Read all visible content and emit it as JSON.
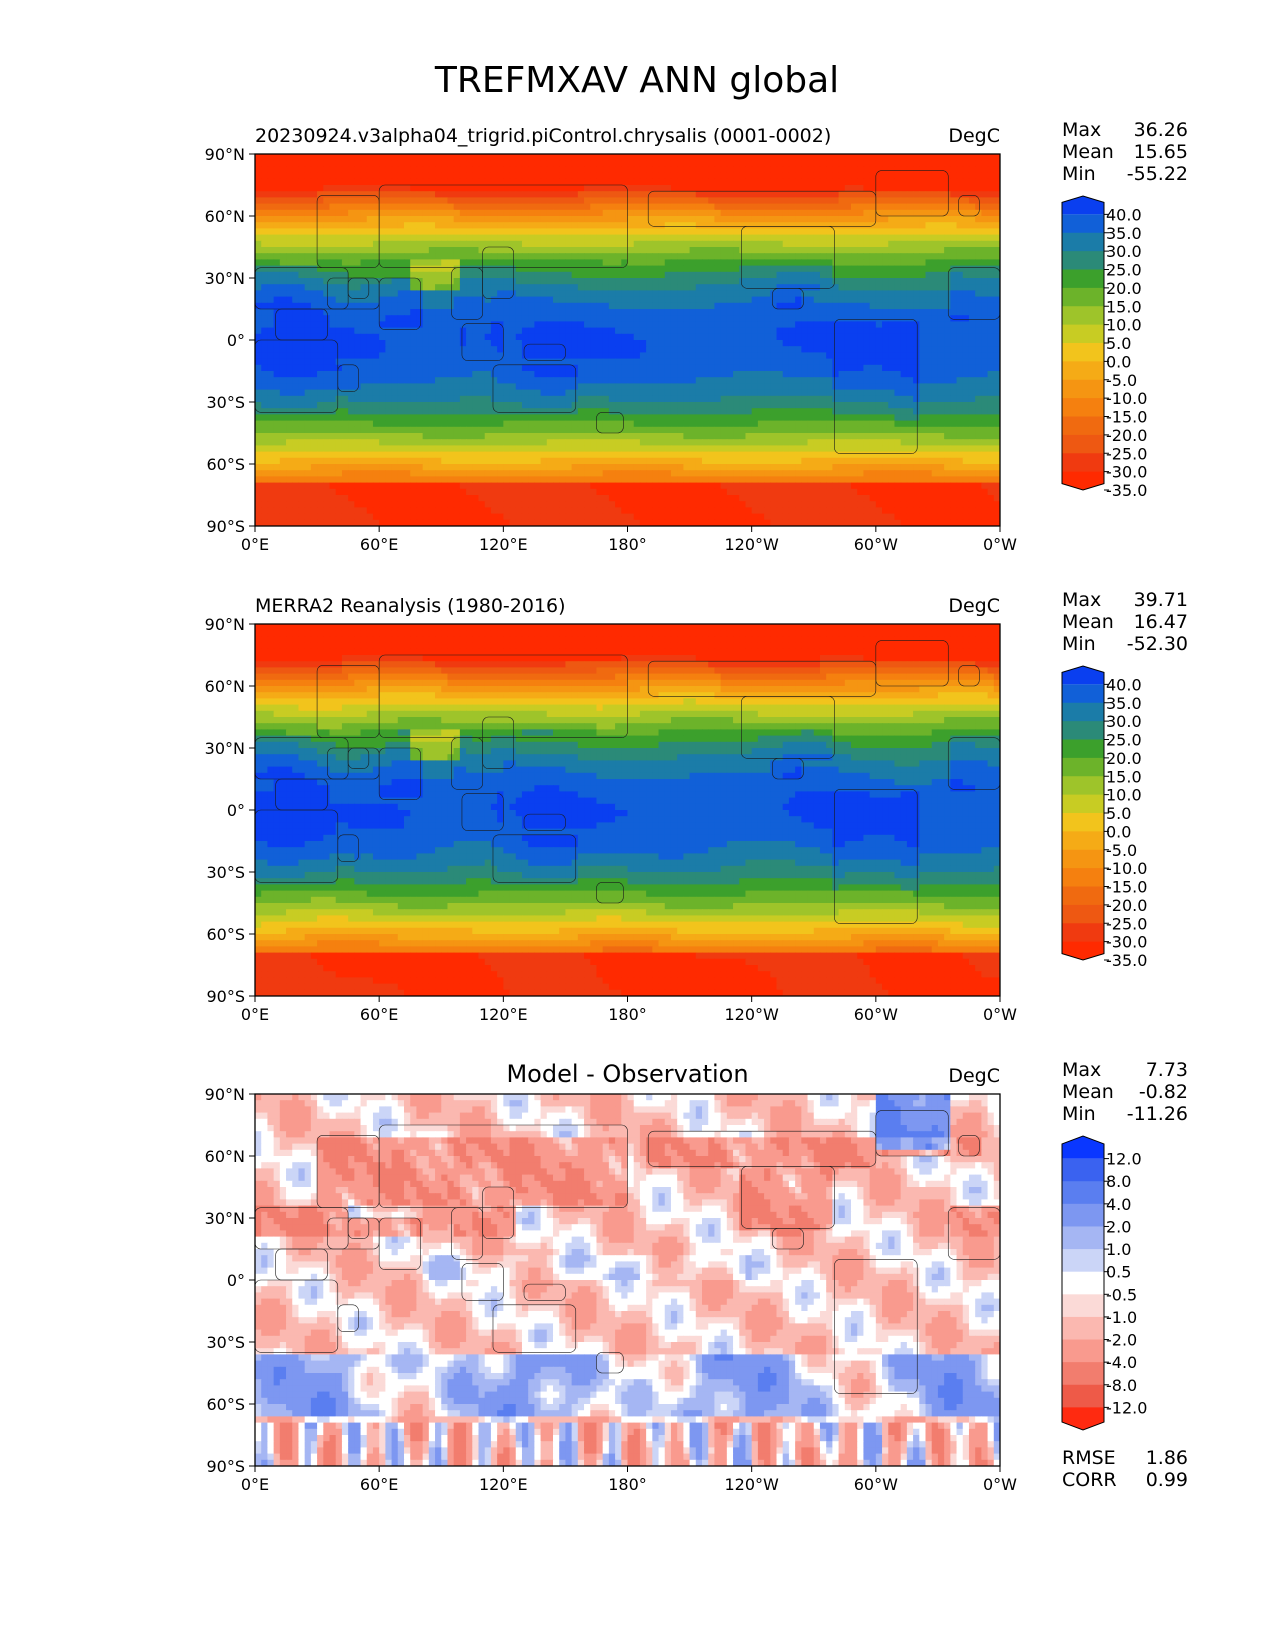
{
  "title": "TREFMXAV ANN global",
  "panels": [
    {
      "id": "model",
      "title_left": "20230924.v3alpha04_trigrid.piControl.chrysalis (0001-0002)",
      "title_center": "",
      "units": "DegC",
      "stats": [
        [
          "Max",
          "36.26"
        ],
        [
          "Mean",
          "15.65"
        ],
        [
          "Min",
          "-55.22"
        ]
      ],
      "colorbar": {
        "colors": [
          "#0a3ff0",
          "#1160d8",
          "#1b7ca8",
          "#2b8a78",
          "#3ca02c",
          "#6cb32a",
          "#9ec42a",
          "#c8cc23",
          "#f2c41c",
          "#f5ab16",
          "#f59512",
          "#f5800f",
          "#f06a10",
          "#ee5812",
          "#f03a10",
          "#ff2a00"
        ],
        "tick_labels": [
          "40.0",
          "35.0",
          "30.0",
          "25.0",
          "20.0",
          "15.0",
          "10.0",
          "5.0",
          "0.0",
          "-5.0",
          "-10.0",
          "-15.0",
          "-20.0",
          "-25.0",
          "-30.0",
          "-35.0"
        ]
      },
      "field": "clim",
      "field_offset": 0
    },
    {
      "id": "obs",
      "title_left": "MERRA2 Reanalysis (1980-2016)",
      "title_center": "",
      "units": "DegC",
      "stats": [
        [
          "Max",
          "39.71"
        ],
        [
          "Mean",
          "16.47"
        ],
        [
          "Min",
          "-52.30"
        ]
      ],
      "colorbar": {
        "colors": [
          "#0a3ff0",
          "#1160d8",
          "#1b7ca8",
          "#2b8a78",
          "#3ca02c",
          "#6cb32a",
          "#9ec42a",
          "#c8cc23",
          "#f2c41c",
          "#f5ab16",
          "#f59512",
          "#f5800f",
          "#f06a10",
          "#ee5812",
          "#f03a10",
          "#ff2a00"
        ],
        "tick_labels": [
          "40.0",
          "35.0",
          "30.0",
          "25.0",
          "20.0",
          "15.0",
          "10.0",
          "5.0",
          "0.0",
          "-5.0",
          "-10.0",
          "-15.0",
          "-20.0",
          "-25.0",
          "-30.0",
          "-35.0"
        ]
      },
      "field": "clim",
      "field_offset": 1
    },
    {
      "id": "diff",
      "title_left": "",
      "title_center": "Model - Observation",
      "units": "DegC",
      "stats": [
        [
          "Max",
          "7.73"
        ],
        [
          "Mean",
          "-0.82"
        ],
        [
          "Min",
          "-11.26"
        ]
      ],
      "colorbar": {
        "colors": [
          "#0a37ff",
          "#3a62f0",
          "#5a7ef0",
          "#7d97f1",
          "#a5b6f3",
          "#cbd5f7",
          "#ffffff",
          "#fbdad7",
          "#fbb8b0",
          "#f99a8e",
          "#f27d6e",
          "#ee5a48",
          "#ff2a10"
        ],
        "tick_labels": [
          "12.0",
          "8.0",
          "4.0",
          "2.0",
          "1.0",
          "0.5",
          "-0.5",
          "-1.0",
          "-2.0",
          "-4.0",
          "-8.0",
          "-12.0"
        ]
      },
      "extra_stats": [
        [
          "RMSE",
          "1.86"
        ],
        [
          "CORR",
          "0.99"
        ]
      ],
      "field": "diff",
      "field_offset": 0
    }
  ],
  "axes": {
    "x_tick_labels": [
      "0°E",
      "60°E",
      "120°E",
      "180°",
      "120°W",
      "60°W",
      "0°W"
    ],
    "y_tick_labels": [
      "90°N",
      "60°N",
      "30°N",
      "0°",
      "30°S",
      "60°S",
      "90°S"
    ],
    "lon_range": [
      0,
      360
    ],
    "lat_range": [
      -90,
      90
    ]
  }
}
